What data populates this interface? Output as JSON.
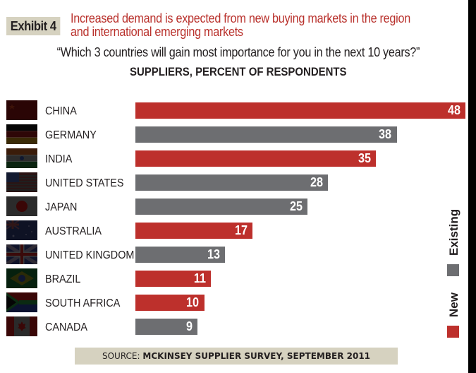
{
  "header": {
    "exhibit_label": "Exhibit 4",
    "headline_line1": "Increased demand is expected from new buying markets in the region",
    "headline_line2": "and international emerging markets",
    "question": "“Which 3 countries will gain most importance for you in the next 10 years?”",
    "subtitle": "SUPPLIERS, PERCENT OF RESPONDENTS"
  },
  "colors": {
    "new": "#bd302c",
    "existing": "#6d6e71",
    "headline": "#b9312c",
    "badge": "#d6d2c0"
  },
  "chart_data": {
    "type": "bar",
    "orientation": "horizontal",
    "title": "SUPPLIERS, PERCENT OF RESPONDENTS",
    "xlabel": "",
    "ylabel": "",
    "xlim": [
      0,
      48
    ],
    "grid": false,
    "legend_position": "right",
    "categories": [
      "CHINA",
      "GERMANY",
      "INDIA",
      "UNITED STATES",
      "JAPAN",
      "AUSTRALIA",
      "UNITED KINGDOM",
      "BRAZIL",
      "SOUTH AFRICA",
      "CANADA"
    ],
    "values": [
      48,
      38,
      35,
      28,
      25,
      17,
      13,
      11,
      10,
      9
    ],
    "market_type": [
      "New",
      "Existing",
      "New",
      "Existing",
      "Existing",
      "New",
      "Existing",
      "New",
      "New",
      "Existing"
    ],
    "flags": [
      "china-flag-icon",
      "germany-flag-icon",
      "india-flag-icon",
      "usa-flag-icon",
      "japan-flag-icon",
      "australia-flag-icon",
      "uk-flag-icon",
      "brazil-flag-icon",
      "south-africa-flag-icon",
      "canada-flag-icon"
    ],
    "legend": [
      {
        "label": "Existing",
        "color": "#6d6e71"
      },
      {
        "label": "New",
        "color": "#bd302c"
      }
    ]
  },
  "footer": {
    "source_prefix": "SOURCE:",
    "source_text": "MCKINSEY SUPPLIER SURVEY, SEPTEMBER 2011"
  }
}
